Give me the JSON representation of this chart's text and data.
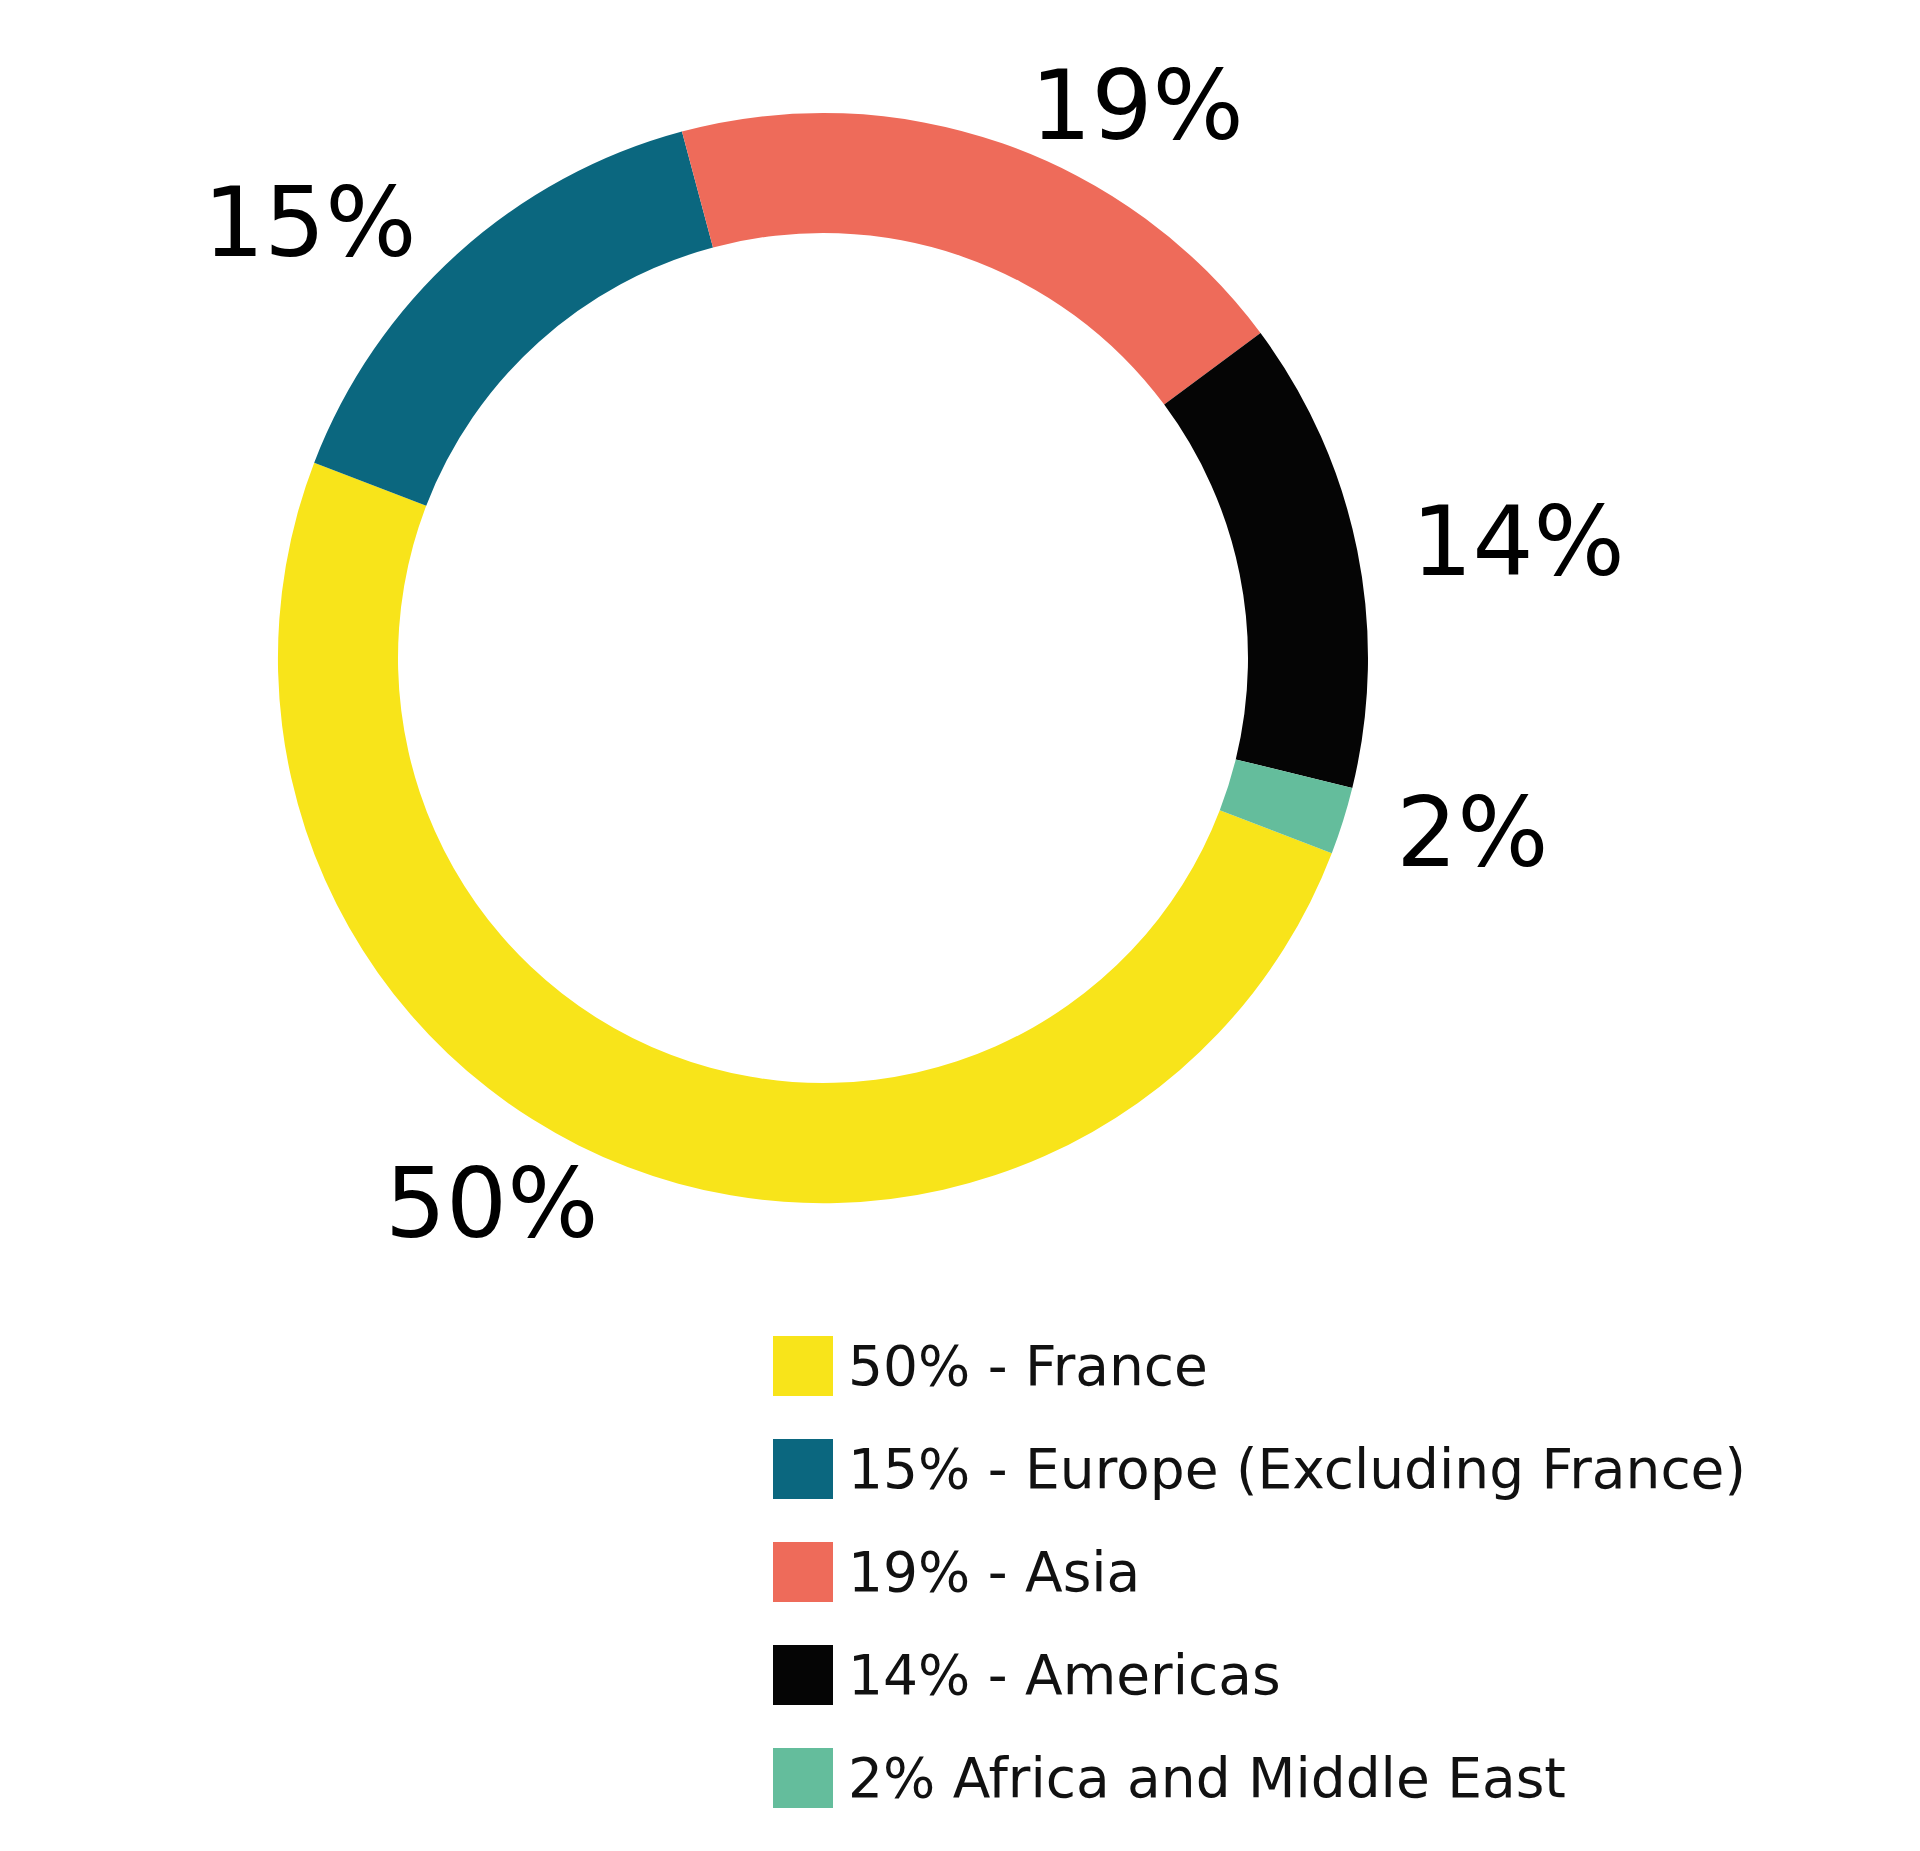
{
  "chart_data": {
    "type": "donut",
    "categories": [
      "50% - France",
      "15% - Europe (Excluding France)",
      "19% - Asia",
      "14% - Americas",
      "2% Africa and Middle East"
    ],
    "values": [
      50,
      15,
      19,
      14,
      2
    ],
    "value_labels": [
      "50%",
      "15%",
      "19%",
      "14%",
      "2%"
    ],
    "colors": [
      "#f8e41a",
      "#0b677f",
      "#ee6b5a",
      "#050505",
      "#64bd9c"
    ],
    "legend": "bottom right"
  }
}
